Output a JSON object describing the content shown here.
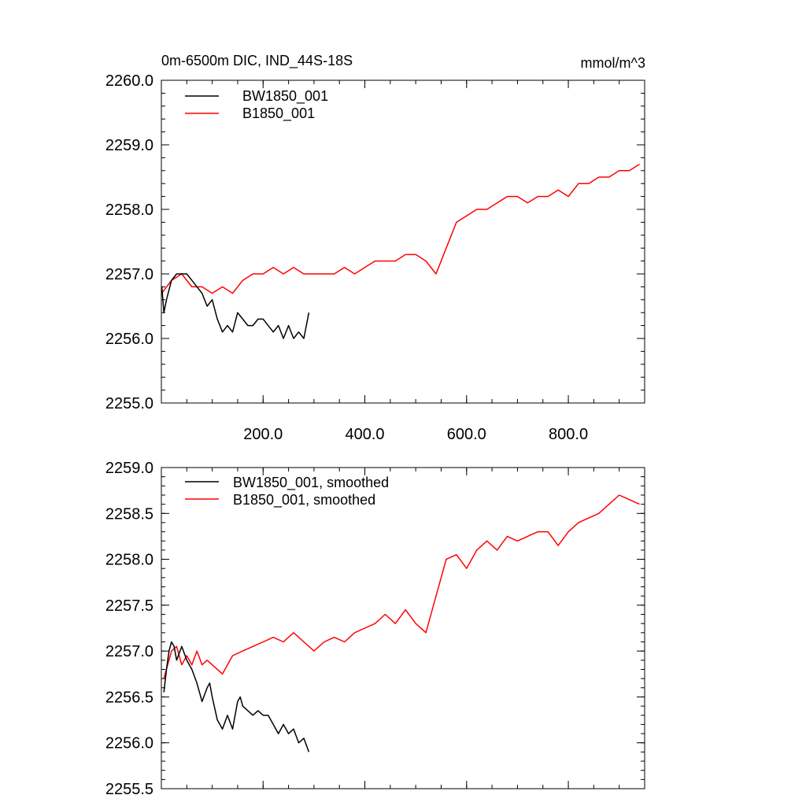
{
  "chart_data": [
    {
      "type": "line",
      "title_left": "0m-6500m DIC, IND_44S-18S",
      "title_right": "mmol/m^3",
      "xlabel": "",
      "ylabel": "",
      "xlim": [
        0,
        950
      ],
      "ylim": [
        2255.0,
        2260.0
      ],
      "x_ticks": [
        200,
        400,
        600,
        800
      ],
      "x_tick_labels": [
        "200.0",
        "400.0",
        "600.0",
        "800.0"
      ],
      "y_ticks": [
        2255,
        2256,
        2257,
        2258,
        2259,
        2260
      ],
      "y_tick_labels": [
        "2255.0",
        "2256.0",
        "2257.0",
        "2258.0",
        "2259.0",
        "2260.0"
      ],
      "legend_position": "top-left",
      "series": [
        {
          "name": "BW1850_001",
          "color": "#000000",
          "x": [
            1,
            5,
            10,
            20,
            30,
            40,
            50,
            60,
            70,
            80,
            90,
            100,
            110,
            120,
            130,
            140,
            150,
            160,
            170,
            180,
            190,
            200,
            210,
            220,
            230,
            240,
            250,
            260,
            270,
            280,
            290
          ],
          "y": [
            2256.8,
            2256.4,
            2256.6,
            2256.9,
            2257.0,
            2257.0,
            2257.0,
            2256.9,
            2256.8,
            2256.7,
            2256.5,
            2256.6,
            2256.3,
            2256.1,
            2256.2,
            2256.1,
            2256.4,
            2256.3,
            2256.2,
            2256.2,
            2256.3,
            2256.3,
            2256.2,
            2256.1,
            2256.2,
            2256.0,
            2256.2,
            2256.0,
            2256.1,
            2256.0,
            2256.4
          ]
        },
        {
          "name": "B1850_001",
          "color": "#ff0000",
          "x": [
            1,
            20,
            40,
            60,
            80,
            100,
            120,
            140,
            160,
            180,
            200,
            220,
            240,
            260,
            280,
            300,
            320,
            340,
            360,
            380,
            400,
            420,
            440,
            460,
            480,
            500,
            520,
            540,
            560,
            580,
            600,
            620,
            640,
            660,
            680,
            700,
            720,
            740,
            760,
            780,
            800,
            820,
            840,
            860,
            880,
            900,
            920,
            940
          ],
          "y": [
            2256.7,
            2256.9,
            2257.0,
            2256.8,
            2256.8,
            2256.7,
            2256.8,
            2256.7,
            2256.9,
            2257.0,
            2257.0,
            2257.1,
            2257.0,
            2257.1,
            2257.0,
            2257.0,
            2257.0,
            2257.0,
            2257.1,
            2257.0,
            2257.1,
            2257.2,
            2257.2,
            2257.2,
            2257.3,
            2257.3,
            2257.2,
            2257.0,
            2257.4,
            2257.8,
            2257.9,
            2258.0,
            2258.0,
            2258.1,
            2258.2,
            2258.2,
            2258.1,
            2258.2,
            2258.2,
            2258.3,
            2258.2,
            2258.4,
            2258.4,
            2258.5,
            2258.5,
            2258.6,
            2258.6,
            2258.7
          ]
        }
      ]
    },
    {
      "type": "line",
      "title_left": "",
      "title_right": "",
      "xlabel": "",
      "ylabel": "",
      "xlim": [
        0,
        950
      ],
      "ylim": [
        2255.5,
        2259.0
      ],
      "x_ticks": [
        200,
        400,
        600,
        800
      ],
      "x_tick_labels": [],
      "y_ticks": [
        2255.5,
        2256.0,
        2256.5,
        2257.0,
        2257.5,
        2258.0,
        2258.5,
        2259.0
      ],
      "y_tick_labels": [
        "2255.5",
        "2256.0",
        "2256.5",
        "2257.0",
        "2257.5",
        "2258.0",
        "2258.5",
        "2259.0"
      ],
      "legend_position": "top-left",
      "series": [
        {
          "name": "BW1850_001, smoothed",
          "color": "#000000",
          "x": [
            5,
            10,
            15,
            20,
            25,
            30,
            40,
            50,
            60,
            70,
            80,
            90,
            95,
            100,
            110,
            120,
            130,
            140,
            150,
            155,
            160,
            170,
            180,
            190,
            200,
            210,
            220,
            230,
            240,
            250,
            260,
            270,
            280,
            290
          ],
          "y": [
            2256.55,
            2256.8,
            2257.0,
            2257.1,
            2257.05,
            2256.9,
            2257.05,
            2256.9,
            2256.8,
            2256.65,
            2256.45,
            2256.6,
            2256.65,
            2256.5,
            2256.25,
            2256.15,
            2256.3,
            2256.15,
            2256.45,
            2256.5,
            2256.4,
            2256.35,
            2256.3,
            2256.35,
            2256.3,
            2256.3,
            2256.2,
            2256.1,
            2256.2,
            2256.1,
            2256.15,
            2256.0,
            2256.05,
            2255.9
          ]
        },
        {
          "name": "B1850_001, smoothed",
          "color": "#ff0000",
          "x": [
            5,
            20,
            30,
            40,
            50,
            60,
            70,
            80,
            90,
            100,
            120,
            140,
            160,
            180,
            200,
            220,
            240,
            260,
            280,
            300,
            320,
            340,
            360,
            380,
            400,
            420,
            440,
            460,
            480,
            500,
            520,
            540,
            560,
            580,
            600,
            620,
            640,
            660,
            680,
            700,
            720,
            740,
            760,
            780,
            800,
            820,
            840,
            860,
            880,
            900,
            920,
            940
          ],
          "y": [
            2256.7,
            2257.0,
            2257.05,
            2256.85,
            2256.95,
            2256.85,
            2257.0,
            2256.85,
            2256.9,
            2256.85,
            2256.75,
            2256.95,
            2257.0,
            2257.05,
            2257.1,
            2257.15,
            2257.1,
            2257.2,
            2257.1,
            2257.0,
            2257.1,
            2257.15,
            2257.1,
            2257.2,
            2257.25,
            2257.3,
            2257.4,
            2257.3,
            2257.45,
            2257.3,
            2257.2,
            2257.6,
            2258.0,
            2258.05,
            2257.9,
            2258.1,
            2258.2,
            2258.1,
            2258.25,
            2258.2,
            2258.25,
            2258.3,
            2258.3,
            2258.15,
            2258.3,
            2258.4,
            2258.45,
            2258.5,
            2258.6,
            2258.7,
            2258.65,
            2258.6
          ]
        }
      ]
    }
  ]
}
